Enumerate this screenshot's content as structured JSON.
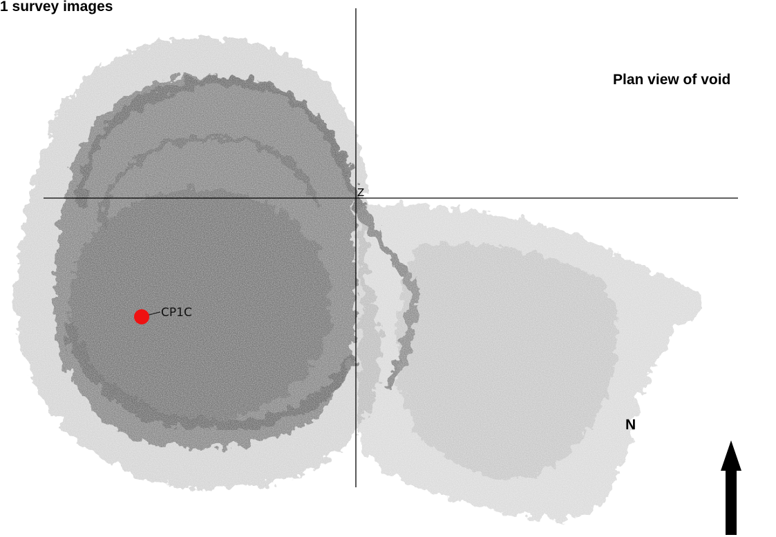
{
  "title": "1 survey images",
  "view_label": "Plan view of void",
  "axis": {
    "origin_label": "Z"
  },
  "control_point": {
    "label": "CP1C",
    "color": "#ee1111"
  },
  "north": {
    "label": "N",
    "arrow_color": "#000000"
  },
  "colors": {
    "point_cloud": "#808080",
    "axes": "#000000",
    "background": "#ffffff"
  }
}
